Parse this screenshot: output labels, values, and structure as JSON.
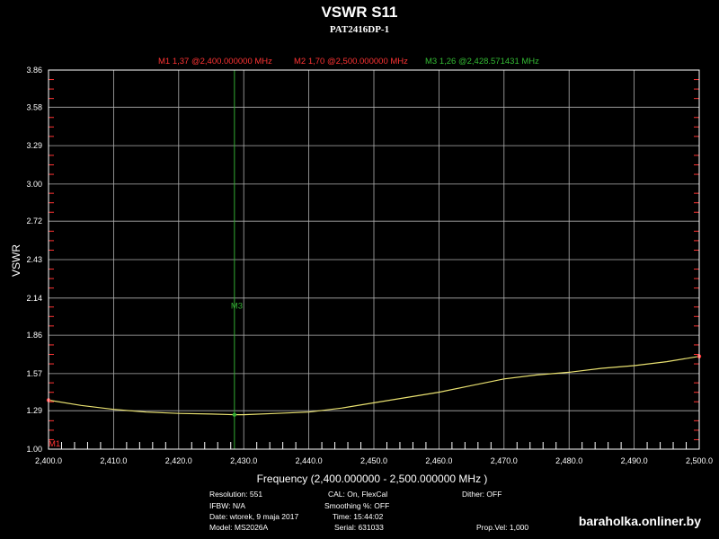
{
  "header": {
    "title": "VSWR S11",
    "subtitle": "PAT2416DP-1"
  },
  "markers": [
    {
      "label": "M1",
      "readout": "M1  1,37 @2,400.000000 MHz",
      "x": 2400.0,
      "y": 1.37,
      "color": "#ff3333"
    },
    {
      "label": "M2",
      "readout": "M2  1,70 @2,500.000000 MHz",
      "x": 2500.0,
      "y": 1.7,
      "color": "#ff3333"
    },
    {
      "label": "M3",
      "readout": "M3  1,26 @2,428.571431 MHz",
      "x": 2428.571431,
      "y": 1.26,
      "color": "#33aa33"
    }
  ],
  "chart_data": {
    "type": "line",
    "title": "VSWR S11",
    "subtitle": "PAT2416DP-1",
    "xlabel": "Frequency (2,400.000000 - 2,500.000000 MHz )",
    "ylabel": "VSWR",
    "xlim": [
      2400,
      2500
    ],
    "ylim": [
      1.0,
      3.86
    ],
    "grid": true,
    "x_ticks": [
      2400,
      2410,
      2420,
      2430,
      2440,
      2450,
      2460,
      2470,
      2480,
      2490,
      2500
    ],
    "x_tick_labels": [
      "2,400.0",
      "2,410.0",
      "2,420.0",
      "2,430.0",
      "2,440.0",
      "2,450.0",
      "2,460.0",
      "2,470.0",
      "2,480.0",
      "2,490.0",
      "2,500.0"
    ],
    "y_ticks": [
      1.0,
      1.29,
      1.57,
      1.86,
      2.14,
      2.43,
      2.72,
      3.0,
      3.29,
      3.58,
      3.86
    ],
    "y_tick_labels": [
      "1.00",
      "1.29",
      "1.57",
      "1.86",
      "2.14",
      "2.43",
      "2.72",
      "3.00",
      "3.29",
      "3.58",
      "3.86"
    ],
    "series": [
      {
        "color": "#e8e070",
        "x": [
          2400,
          2405,
          2410,
          2415,
          2420,
          2425,
          2428.57,
          2430,
          2435,
          2440,
          2445,
          2450,
          2455,
          2460,
          2465,
          2470,
          2475,
          2480,
          2485,
          2490,
          2495,
          2500
        ],
        "y": [
          1.37,
          1.33,
          1.3,
          1.28,
          1.27,
          1.265,
          1.26,
          1.26,
          1.27,
          1.28,
          1.31,
          1.35,
          1.39,
          1.43,
          1.48,
          1.53,
          1.56,
          1.58,
          1.61,
          1.63,
          1.66,
          1.7
        ]
      }
    ]
  },
  "info": {
    "resolution": "Resolution: 551",
    "ifbw": "IFBW: N/A",
    "date": "Date: wtorek, 9 maja 2017",
    "model": "Model: MS2026A",
    "cal": "CAL: On, FlexCal",
    "smoothing": "Smoothing %:  OFF",
    "time": "Time: 15:44:02",
    "serial": "Serial: 631033",
    "dither": "Dither:  OFF",
    "prop_vel": "Prop.Vel: 1,000"
  },
  "watermark": "baraholka.onliner.by"
}
